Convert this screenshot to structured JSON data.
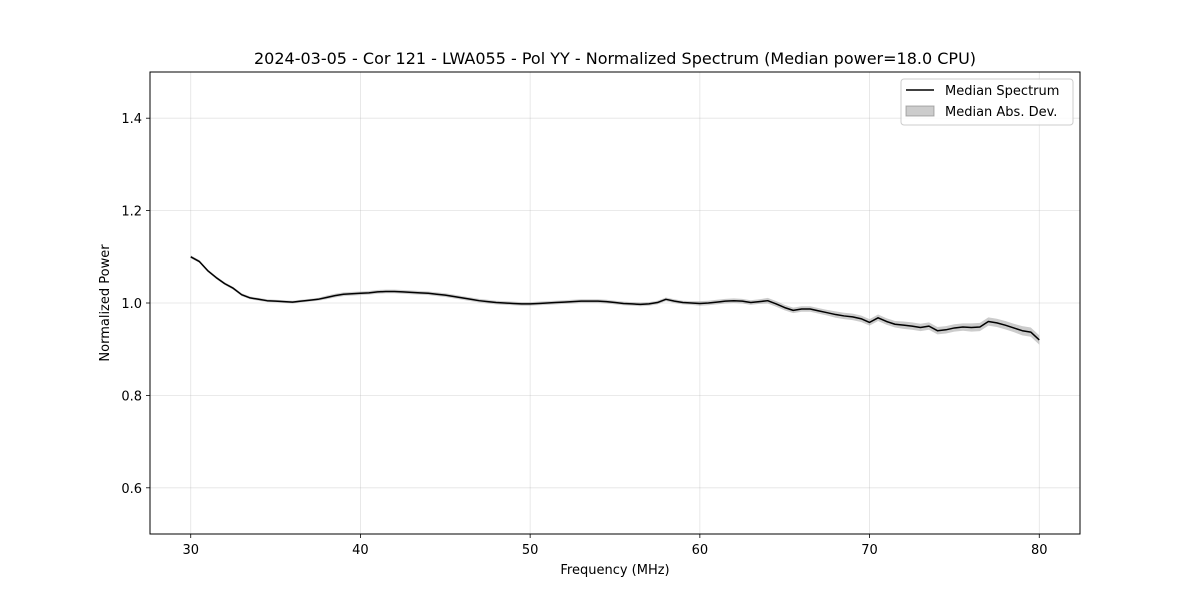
{
  "chart_data": {
    "type": "line",
    "title": "2024-03-05 - Cor 121 - LWA055 - Pol YY - Normalized Spectrum (Median power=18.0 CPU)",
    "xlabel": "Frequency (MHz)",
    "ylabel": "Normalized Power",
    "xlim": [
      27.6,
      82.4
    ],
    "ylim": [
      0.5,
      1.5
    ],
    "xticks": [
      30,
      40,
      50,
      60,
      70,
      80
    ],
    "yticks": [
      0.6,
      0.8,
      1.0,
      1.2,
      1.4
    ],
    "xtick_labels": [
      "30",
      "40",
      "50",
      "60",
      "70",
      "80"
    ],
    "ytick_labels": [
      "0.6",
      "0.8",
      "1.0",
      "1.2",
      "1.4"
    ],
    "grid": true,
    "legend_position": "top-right",
    "series": [
      {
        "name": "Median Spectrum",
        "color": "#000000",
        "x": [
          30.0,
          30.5,
          31.0,
          31.5,
          32.0,
          32.5,
          33.0,
          33.5,
          34.0,
          34.5,
          35.0,
          35.5,
          36.0,
          36.5,
          37.0,
          37.5,
          38.0,
          38.5,
          39.0,
          39.5,
          40.0,
          40.5,
          41.0,
          41.5,
          42.0,
          42.5,
          43.0,
          43.5,
          44.0,
          44.5,
          45.0,
          45.5,
          46.0,
          46.5,
          47.0,
          47.5,
          48.0,
          48.5,
          49.0,
          49.5,
          50.0,
          50.5,
          51.0,
          51.5,
          52.0,
          52.5,
          53.0,
          53.5,
          54.0,
          54.5,
          55.0,
          55.5,
          56.0,
          56.5,
          57.0,
          57.5,
          58.0,
          58.5,
          59.0,
          59.5,
          60.0,
          60.5,
          61.0,
          61.5,
          62.0,
          62.5,
          63.0,
          63.5,
          64.0,
          64.5,
          65.0,
          65.5,
          66.0,
          66.5,
          67.0,
          67.5,
          68.0,
          68.5,
          69.0,
          69.5,
          70.0,
          70.5,
          71.0,
          71.5,
          72.0,
          72.5,
          73.0,
          73.5,
          74.0,
          74.5,
          75.0,
          75.5,
          76.0,
          76.5,
          77.0,
          77.5,
          78.0,
          78.5,
          79.0,
          79.5,
          80.0
        ],
        "y": [
          1.1,
          1.09,
          1.07,
          1.055,
          1.042,
          1.032,
          1.018,
          1.011,
          1.008,
          1.005,
          1.004,
          1.003,
          1.002,
          1.004,
          1.006,
          1.008,
          1.012,
          1.016,
          1.019,
          1.02,
          1.021,
          1.022,
          1.024,
          1.025,
          1.025,
          1.024,
          1.023,
          1.022,
          1.021,
          1.019,
          1.017,
          1.014,
          1.011,
          1.008,
          1.005,
          1.003,
          1.001,
          1.0,
          0.999,
          0.998,
          0.998,
          0.999,
          1.0,
          1.001,
          1.002,
          1.003,
          1.004,
          1.004,
          1.004,
          1.003,
          1.001,
          0.999,
          0.998,
          0.997,
          0.998,
          1.001,
          1.008,
          1.004,
          1.001,
          1.0,
          0.999,
          1.0,
          1.002,
          1.004,
          1.005,
          1.004,
          1.001,
          1.003,
          1.005,
          0.998,
          0.99,
          0.984,
          0.987,
          0.987,
          0.983,
          0.979,
          0.975,
          0.972,
          0.97,
          0.966,
          0.958,
          0.968,
          0.96,
          0.954,
          0.952,
          0.95,
          0.947,
          0.95,
          0.94,
          0.942,
          0.946,
          0.948,
          0.947,
          0.948,
          0.96,
          0.957,
          0.952,
          0.946,
          0.94,
          0.937,
          0.92
        ]
      },
      {
        "name": "Median Abs. Dev.",
        "color": "#7f7f7f",
        "mad": [
          0.003,
          0.003,
          0.003,
          0.003,
          0.003,
          0.003,
          0.003,
          0.003,
          0.003,
          0.003,
          0.003,
          0.003,
          0.003,
          0.003,
          0.003,
          0.003,
          0.004,
          0.004,
          0.004,
          0.004,
          0.004,
          0.004,
          0.004,
          0.004,
          0.004,
          0.004,
          0.004,
          0.004,
          0.004,
          0.004,
          0.004,
          0.004,
          0.004,
          0.004,
          0.004,
          0.004,
          0.004,
          0.004,
          0.004,
          0.004,
          0.004,
          0.004,
          0.004,
          0.004,
          0.004,
          0.004,
          0.004,
          0.004,
          0.004,
          0.004,
          0.004,
          0.004,
          0.004,
          0.004,
          0.004,
          0.004,
          0.004,
          0.004,
          0.004,
          0.004,
          0.005,
          0.005,
          0.005,
          0.005,
          0.005,
          0.005,
          0.005,
          0.005,
          0.006,
          0.006,
          0.006,
          0.006,
          0.006,
          0.006,
          0.006,
          0.006,
          0.007,
          0.007,
          0.007,
          0.007,
          0.007,
          0.007,
          0.007,
          0.007,
          0.008,
          0.008,
          0.008,
          0.008,
          0.008,
          0.008,
          0.008,
          0.008,
          0.009,
          0.009,
          0.009,
          0.009,
          0.009,
          0.009,
          0.01,
          0.01,
          0.01
        ]
      }
    ]
  }
}
